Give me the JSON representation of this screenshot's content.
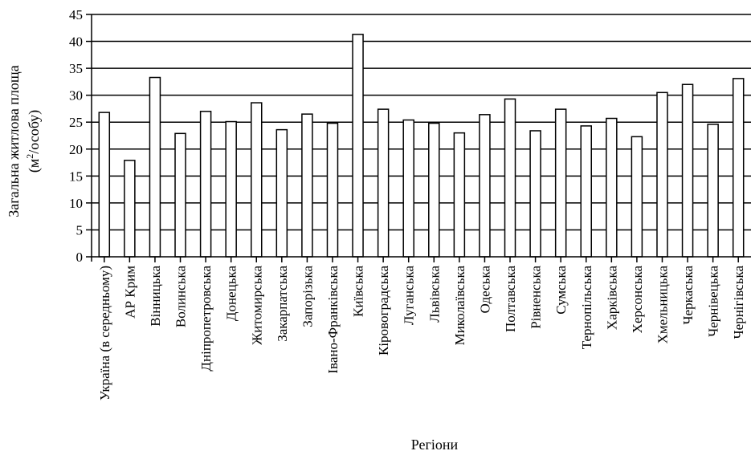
{
  "chart_data": {
    "type": "bar",
    "title": "",
    "ylabel_line1": "Загальна житлова площа",
    "ylabel_line2_prefix": "(м",
    "ylabel_line2_sup": "2",
    "ylabel_line2_suffix": "/особу)",
    "xlabel": "Регіони",
    "ylim": [
      0,
      45
    ],
    "yticks": [
      0,
      5,
      10,
      15,
      20,
      25,
      30,
      35,
      40,
      45
    ],
    "grid": "horizontal",
    "categories": [
      "Україна (в середньому)",
      "АР Крим",
      "Вінницька",
      "Волинська",
      "Дніпропетровська",
      "Донецька",
      "Житомирська",
      "Закарпатська",
      "Запорізька",
      "Івано-Франківська",
      "Київська",
      "Кіровоградська",
      "Луганська",
      "Львівська",
      "Миколаївська",
      "Одеська",
      "Полтавська",
      "Рівненська",
      "Сумська",
      "Тернопільська",
      "Харківська",
      "Херсонська",
      "Хмельницька",
      "Черкаська",
      "Чернівецька",
      "Чернігівська"
    ],
    "values": [
      26.8,
      17.9,
      33.3,
      22.9,
      27.0,
      25.1,
      28.6,
      23.6,
      26.5,
      24.8,
      41.3,
      27.4,
      25.4,
      24.8,
      23.0,
      26.4,
      29.3,
      23.4,
      27.4,
      24.3,
      25.7,
      22.3,
      30.5,
      32.0,
      24.6,
      33.1
    ],
    "bar_fill": "#ffffff",
    "bar_stroke": "#000000"
  }
}
